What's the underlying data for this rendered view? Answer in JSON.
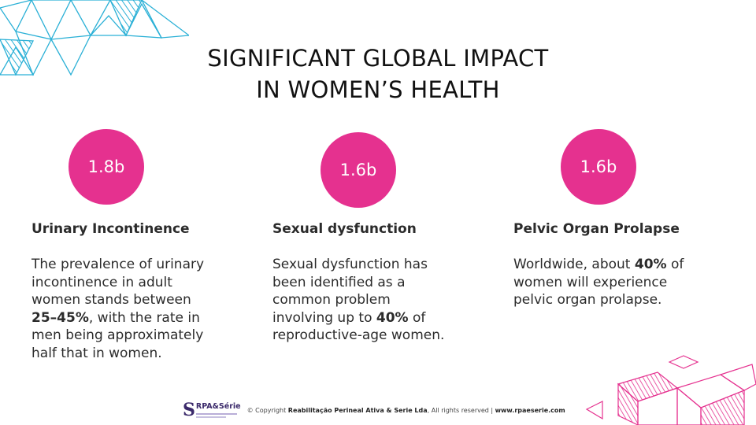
{
  "title": {
    "line1": "SIGNIFICANT GLOBAL IMPACT",
    "line2": "IN WOMEN’S HEALTH"
  },
  "accent_color": "#e5318f",
  "secondary_color": "#2ab0d6",
  "cards": [
    {
      "stat": "1.8b",
      "heading": "Urinary Incontinence",
      "body_pre": "The prevalence of urinary incontinence in adult women stands between ",
      "body_bold": "25–45%",
      "body_post": ", with the rate in men being approximately half that in women."
    },
    {
      "stat": "1.6b",
      "heading": "Sexual dysfunction",
      "body_pre": "Sexual dysfunction has been identified as a common problem involving up to ",
      "body_bold": "40%",
      "body_post": " of reproductive-age women."
    },
    {
      "stat": "1.6b",
      "heading": "Pelvic Organ Prolapse",
      "body_pre": "Worldwide, about ",
      "body_bold": "40%",
      "body_post": " of women will experience pelvic organ prolapse."
    }
  ],
  "footer": {
    "logo_mark": "S",
    "logo_name": "RPA&Série",
    "copyright_pre": "© Copyright ",
    "copyright_company": "Reabilitação Perineal Ativa & Serie Lda",
    "copyright_mid": ", All rights reserved | ",
    "copyright_site": "www.rpaeserie.com"
  },
  "icons": {
    "top_left": "blue-triangle-pattern-decoration",
    "bottom_right": "pink-cube-pattern-decoration"
  }
}
